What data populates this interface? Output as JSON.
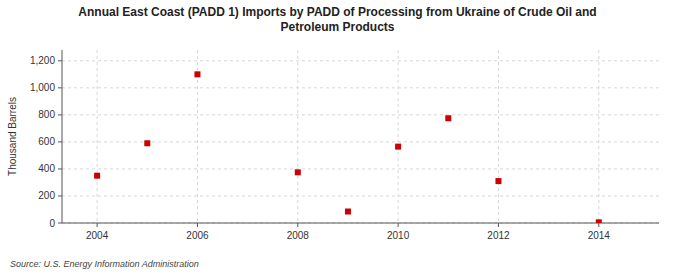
{
  "chart_data": {
    "type": "scatter",
    "title": "Annual East Coast (PADD 1) Imports by PADD of Processing from Ukraine of Crude Oil and\nPetroleum Products",
    "y_label": "Thousand Barrels",
    "source": "Source: U.S. Energy Information Administration",
    "x": [
      2004,
      2005,
      2006,
      2008,
      2009,
      2010,
      2011,
      2012,
      2014
    ],
    "values": [
      350,
      590,
      1100,
      375,
      85,
      565,
      775,
      310,
      5
    ],
    "color": "#cc0000",
    "marker": "square",
    "xlim": [
      2003.3,
      2015.2
    ],
    "ylim": [
      0,
      1280
    ],
    "xticks": [
      2004,
      2006,
      2008,
      2010,
      2012,
      2014
    ],
    "yticks": [
      0,
      200,
      400,
      600,
      800,
      {
        "value": 1000,
        "label": "1,000"
      },
      {
        "value": 1200,
        "label": "1,200"
      }
    ],
    "grid": true
  }
}
